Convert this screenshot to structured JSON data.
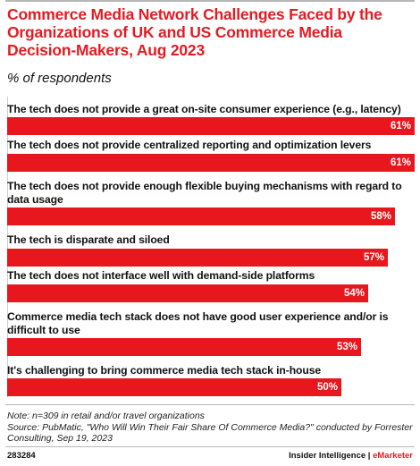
{
  "header": {
    "title": "Commerce Media Network Challenges Faced by the Organizations of UK and US Commerce Media Decision-Makers, Aug 2023",
    "subtitle": "% of respondents"
  },
  "chart_data": {
    "type": "bar",
    "orientation": "horizontal",
    "title": "Commerce Media Network Challenges Faced by the Organizations of UK and US Commerce Media Decision-Makers, Aug 2023",
    "subtitle": "% of respondents",
    "xlim": [
      0,
      61
    ],
    "grid": false,
    "legend": "none",
    "bar_color": "#e8171e",
    "categories": [
      "The tech does not provide a great on-site consumer experience (e.g., latency)",
      "The tech does not provide centralized reporting and optimization levers",
      "The tech does not provide enough flexible buying mechanisms with regard to data usage",
      "The tech is disparate and siloed",
      "The tech does not interface well with demand-side platforms",
      "Commerce media tech stack does not have good user experience and/or is difficult to use",
      "It's challenging to bring commerce media tech stack in-house"
    ],
    "values": [
      61,
      61,
      58,
      57,
      54,
      53,
      50
    ],
    "value_labels": [
      "61%",
      "61%",
      "58%",
      "57%",
      "54%",
      "53%",
      "50%"
    ]
  },
  "footer": {
    "note": "Note: n=309 in retail and/or travel organizations",
    "source": "Source: PubMatic, \"Who Will Win Their Fair Share Of Commerce Media?\" conducted by Forrester Consulting, Sep 19, 2023",
    "chart_id": "283284",
    "brand_left": "Insider Intelligence",
    "brand_sep": " | ",
    "brand_right": "eMarketer"
  }
}
